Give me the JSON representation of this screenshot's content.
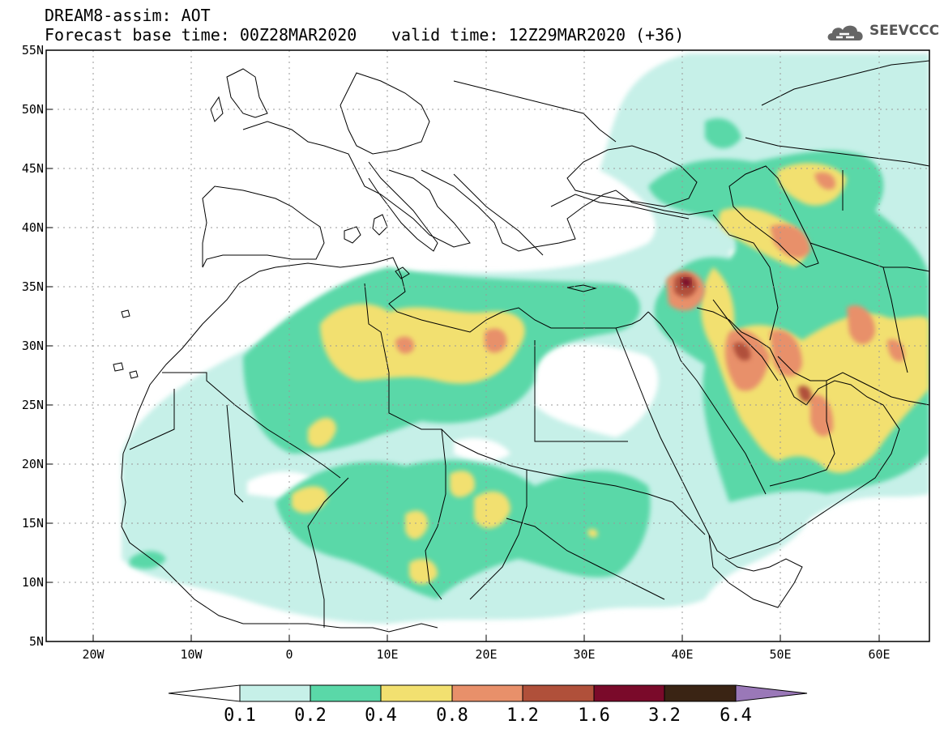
{
  "header": {
    "title_line1": "DREAM8-assim: AOT",
    "title_line2": "Forecast base time: 00Z28MAR2020",
    "valid_time": "valid time: 12Z29MAR2020 (+36)",
    "logo_text": "SEEVCCC"
  },
  "map": {
    "variable": "AOT",
    "lat_labels": [
      "55N",
      "50N",
      "45N",
      "40N",
      "35N",
      "30N",
      "25N",
      "20N",
      "15N",
      "10N",
      "5N"
    ],
    "lon_labels": [
      "20W",
      "10W",
      "0",
      "10E",
      "20E",
      "30E",
      "40E",
      "50E",
      "60E"
    ]
  },
  "colorbar": {
    "labels": [
      "0.1",
      "0.2",
      "0.4",
      "0.8",
      "1.2",
      "1.6",
      "3.2",
      "6.4"
    ],
    "colors": [
      "#ffffff",
      "#c6f0e8",
      "#5ad8a8",
      "#f2e070",
      "#e8906a",
      "#b0503a",
      "#7a0a2a",
      "#3a2414",
      "#9a78b8"
    ]
  }
}
